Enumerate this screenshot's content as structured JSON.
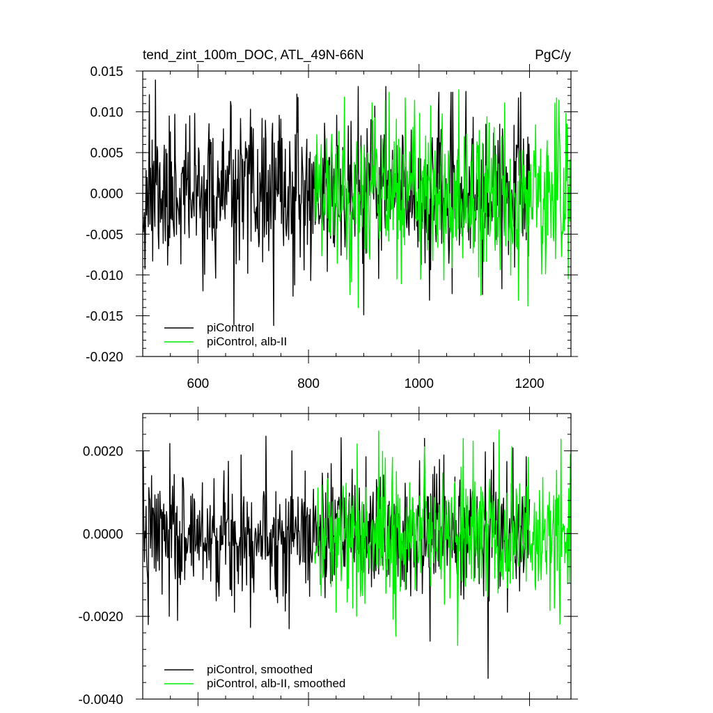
{
  "chart_data": [
    {
      "type": "line",
      "title_left": "tend_zint_100m_DOC, ATL_49N-66N",
      "title_right": "PgC/y",
      "xlabel": "",
      "ylabel": "",
      "xlim": [
        500,
        1275
      ],
      "ylim": [
        -0.02,
        0.015
      ],
      "x_ticks": [
        600,
        800,
        1000,
        1200
      ],
      "x_tick_labels": [
        "600",
        "800",
        "1000",
        "1200"
      ],
      "y_ticks": [
        0.015,
        0.01,
        0.005,
        0.0,
        -0.005,
        -0.01,
        -0.015,
        -0.02
      ],
      "y_tick_labels": [
        "0.015",
        "0.010",
        "0.005",
        "0.000",
        "-0.005",
        "-0.010",
        "-0.015",
        "-0.020"
      ],
      "grid": false,
      "legend_position": "bottom-left",
      "series": [
        {
          "name": "piControl",
          "color": "#000000",
          "x_range": [
            501,
            1200
          ],
          "std": 0.0042,
          "seed": 11,
          "extremes": [
            [
              512,
              0.0121
            ],
            [
              518,
              -0.0083
            ],
            [
              523,
              0.0139
            ],
            [
              545,
              -0.0088
            ],
            [
              558,
              0.0097
            ],
            [
              632,
              -0.0104
            ],
            [
              660,
              0.0107
            ],
            [
              665,
              -0.0161
            ],
            [
              690,
              -0.0098
            ],
            [
              737,
              -0.0162
            ],
            [
              750,
              0.0091
            ],
            [
              772,
              -0.0126
            ],
            [
              829,
              0.0086
            ],
            [
              890,
              0.0131
            ],
            [
              900,
              -0.0149
            ],
            [
              920,
              0.0107
            ],
            [
              940,
              0.0131
            ],
            [
              1019,
              -0.0131
            ],
            [
              1060,
              -0.0123
            ],
            [
              1085,
              0.0125
            ],
            [
              1150,
              -0.0117
            ],
            [
              1180,
              0.0117
            ]
          ]
        },
        {
          "name": "piControl, alb-II",
          "color": "#00ee00",
          "x_range": [
            811,
            1275
          ],
          "std": 0.0044,
          "seed": 29,
          "extremes": [
            [
              865,
              0.0118
            ],
            [
              890,
              -0.014
            ],
            [
              915,
              0.0111
            ],
            [
              960,
              -0.0105
            ],
            [
              975,
              0.0117
            ],
            [
              1072,
              0.0127
            ],
            [
              1112,
              -0.0125
            ],
            [
              1155,
              0.0111
            ],
            [
              1180,
              -0.0131
            ],
            [
              1197,
              -0.0138
            ],
            [
              1268,
              0.0085
            ],
            [
              1270,
              -0.0105
            ]
          ]
        }
      ]
    },
    {
      "type": "line",
      "title_left": "",
      "title_right": "",
      "xlabel": "",
      "ylabel": "",
      "xlim": [
        500,
        1275
      ],
      "ylim": [
        -0.004,
        0.0029
      ],
      "x_ticks": [
        600,
        800,
        1000,
        1200
      ],
      "x_tick_labels": [],
      "y_ticks": [
        0.002,
        0.0,
        -0.002,
        -0.004
      ],
      "y_tick_labels": [
        "0.0020",
        "0.0000",
        "-0.0020",
        "-0.0040"
      ],
      "grid": false,
      "legend_position": "bottom-left",
      "series": [
        {
          "name": "piControl, smoothed",
          "color": "#000000",
          "x_range": [
            501,
            1200
          ],
          "std": 0.00072,
          "seed": 7,
          "extremes": [
            [
              510,
              -0.0022
            ],
            [
              548,
              -0.002
            ],
            [
              563,
              -0.0021
            ],
            [
              666,
              -0.0019
            ],
            [
              678,
              0.0019
            ],
            [
              765,
              -0.0023
            ],
            [
              770,
              0.002
            ],
            [
              1010,
              0.0023
            ],
            [
              1020,
              -0.0026
            ],
            [
              1045,
              0.0019
            ],
            [
              1125,
              -0.0035
            ],
            [
              1135,
              0.0022
            ],
            [
              1160,
              -0.0019
            ]
          ]
        },
        {
          "name": "piControl, alb-II, smoothed",
          "color": "#00ee00",
          "x_range": [
            811,
            1275
          ],
          "std": 0.00078,
          "seed": 41,
          "extremes": [
            [
              850,
              -0.0019
            ],
            [
              880,
              -0.0018
            ],
            [
              1010,
              0.0021
            ],
            [
              1070,
              -0.0027
            ],
            [
              1080,
              0.0023
            ],
            [
              1145,
              0.0025
            ],
            [
              1168,
              0.0021
            ],
            [
              1245,
              -0.0018
            ],
            [
              1272,
              -0.0012
            ]
          ]
        }
      ]
    }
  ]
}
